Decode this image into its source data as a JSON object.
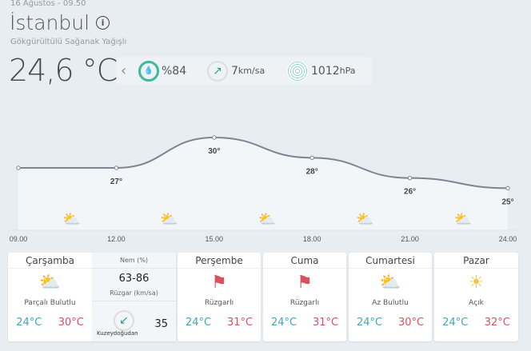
{
  "header": {
    "date": "16 Ağustos - 09.50",
    "city": "İstanbul",
    "condition": "Gökgürültülü Sağanak Yağışlı",
    "temperature": "24,6 °C"
  },
  "current": {
    "humidity": "%84",
    "wind_value": "7",
    "wind_unit": "km/sa",
    "pressure_value": "1012",
    "pressure_unit": "hPa"
  },
  "chart_data": {
    "type": "line",
    "x": [
      "09.00",
      "12.00",
      "15.00",
      "18.00",
      "21.00",
      "24.00"
    ],
    "values": [
      27,
      27,
      30,
      28,
      26,
      25
    ],
    "labels": [
      "",
      "27°",
      "30°",
      "28°",
      "26°",
      "25°"
    ],
    "icons": [
      "partly-cloudy",
      "partly-cloudy",
      "partly-cloudy",
      "partly-cloudy",
      "partly-cloudy"
    ]
  },
  "today": {
    "day": "Çarşamba",
    "desc": "Parçalı Bulutlu",
    "low": "24°C",
    "high": "30°C",
    "humidity_label": "Nem (%)",
    "humidity": "63-86",
    "wind_label": "Rüzgar (km/sa)",
    "wind_dir": "Kuzeydoğudan",
    "wind": "35"
  },
  "days": [
    {
      "day": "Perşembe",
      "desc": "Rüzgarlı",
      "low": "24°C",
      "high": "31°C",
      "icon": "windsock"
    },
    {
      "day": "Cuma",
      "desc": "Rüzgarlı",
      "low": "24°C",
      "high": "31°C",
      "icon": "windsock"
    },
    {
      "day": "Cumartesi",
      "desc": "Az Bulutlu",
      "low": "24°C",
      "high": "30°C",
      "icon": "partly-cloudy"
    },
    {
      "day": "Pazar",
      "desc": "Açık",
      "low": "24°C",
      "high": "32°C",
      "icon": "sun"
    }
  ]
}
